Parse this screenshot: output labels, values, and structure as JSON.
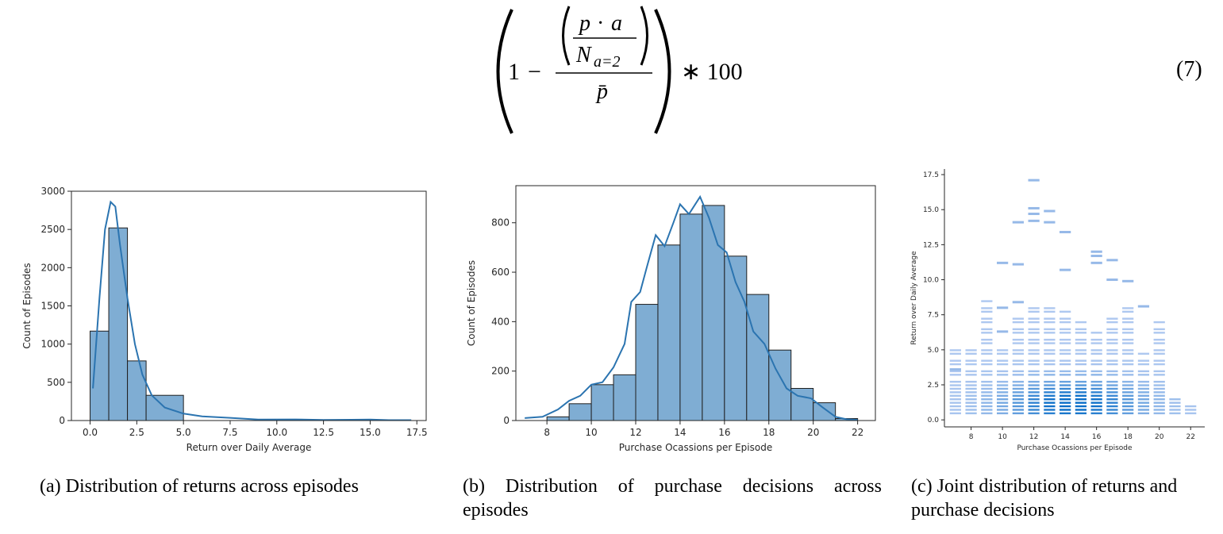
{
  "equation": {
    "number": "(7)",
    "one": "1",
    "minus": "−",
    "p_vec": "p⃗",
    "dot": "·",
    "a_vec": "a⃗",
    "n_label": "N",
    "n_sub": "a=2",
    "p_bar": "p̄",
    "times": "∗ 100"
  },
  "captions": {
    "a": "(a) Distribution of returns across episodes",
    "b_line1": "(b) Distribution of purchase decisions across",
    "b_line2": "episodes",
    "c_line1": "(c) Joint distribution of returns and",
    "c_line2": "purchase decisions"
  },
  "chart_data": [
    {
      "type": "bar",
      "xlabel": "Return over Daily Average",
      "ylabel": "Count of Episodes",
      "xlim": [
        -1,
        18
      ],
      "ylim": [
        0,
        3000
      ],
      "xticks": [
        0.0,
        2.5,
        5.0,
        7.5,
        10.0,
        12.5,
        15.0,
        17.5
      ],
      "xtick_labels": [
        "0.0",
        "2.5",
        "5.0",
        "7.5",
        "10.0",
        "12.5",
        "15.0",
        "17.5"
      ],
      "yticks": [
        0,
        500,
        1000,
        1500,
        2000,
        2500,
        3000
      ],
      "bins": [
        {
          "x0": 0.0,
          "x1": 1.0,
          "value": 1170
        },
        {
          "x0": 1.0,
          "x1": 2.0,
          "value": 2520
        },
        {
          "x0": 2.0,
          "x1": 3.0,
          "value": 780
        },
        {
          "x0": 3.0,
          "x1": 5.0,
          "value": 330
        }
      ],
      "kde": [
        [
          0.15,
          420
        ],
        [
          0.5,
          1600
        ],
        [
          0.8,
          2500
        ],
        [
          1.1,
          2860
        ],
        [
          1.35,
          2800
        ],
        [
          1.6,
          2300
        ],
        [
          2.0,
          1600
        ],
        [
          2.4,
          1000
        ],
        [
          2.8,
          600
        ],
        [
          3.3,
          330
        ],
        [
          4.0,
          170
        ],
        [
          5.0,
          90
        ],
        [
          6.0,
          55
        ],
        [
          7.5,
          35
        ],
        [
          9.0,
          12
        ],
        [
          11.0,
          15
        ],
        [
          12.5,
          8
        ],
        [
          14.0,
          10
        ],
        [
          15.0,
          14
        ],
        [
          16.0,
          5
        ],
        [
          17.2,
          5
        ]
      ]
    },
    {
      "type": "bar",
      "xlabel": "Purchase Ocassions per Episode",
      "ylabel": "Count of Episodes",
      "xlim": [
        6.6,
        22.8
      ],
      "ylim": [
        0,
        950
      ],
      "xticks": [
        8,
        10,
        12,
        14,
        16,
        18,
        20,
        22
      ],
      "xtick_labels": [
        "8",
        "10",
        "12",
        "14",
        "16",
        "18",
        "20",
        "22"
      ],
      "yticks": [
        0,
        200,
        400,
        600,
        800
      ],
      "bins": [
        {
          "x0": 8,
          "x1": 9,
          "value": 15
        },
        {
          "x0": 9,
          "x1": 10,
          "value": 68
        },
        {
          "x0": 10,
          "x1": 11,
          "value": 145
        },
        {
          "x0": 11,
          "x1": 12,
          "value": 185
        },
        {
          "x0": 12,
          "x1": 13,
          "value": 470
        },
        {
          "x0": 13,
          "x1": 14,
          "value": 710
        },
        {
          "x0": 14,
          "x1": 15,
          "value": 835
        },
        {
          "x0": 15,
          "x1": 16,
          "value": 870
        },
        {
          "x0": 16,
          "x1": 17,
          "value": 665
        },
        {
          "x0": 17,
          "x1": 18,
          "value": 510
        },
        {
          "x0": 18,
          "x1": 19,
          "value": 285
        },
        {
          "x0": 19,
          "x1": 20,
          "value": 130
        },
        {
          "x0": 20,
          "x1": 21,
          "value": 72
        },
        {
          "x0": 21,
          "x1": 22,
          "value": 8
        }
      ],
      "kde": [
        [
          7.0,
          10
        ],
        [
          7.8,
          15
        ],
        [
          8.5,
          45
        ],
        [
          9.0,
          80
        ],
        [
          9.5,
          100
        ],
        [
          10.0,
          145
        ],
        [
          10.5,
          155
        ],
        [
          11.0,
          215
        ],
        [
          11.5,
          310
        ],
        [
          11.8,
          480
        ],
        [
          12.2,
          520
        ],
        [
          12.5,
          620
        ],
        [
          12.9,
          750
        ],
        [
          13.3,
          705
        ],
        [
          13.7,
          800
        ],
        [
          14.0,
          875
        ],
        [
          14.4,
          835
        ],
        [
          14.9,
          905
        ],
        [
          15.3,
          820
        ],
        [
          15.7,
          710
        ],
        [
          16.1,
          680
        ],
        [
          16.5,
          560
        ],
        [
          16.9,
          480
        ],
        [
          17.3,
          360
        ],
        [
          17.8,
          310
        ],
        [
          18.3,
          210
        ],
        [
          18.8,
          130
        ],
        [
          19.3,
          100
        ],
        [
          19.9,
          90
        ],
        [
          20.4,
          55
        ],
        [
          21.0,
          15
        ],
        [
          21.5,
          5
        ],
        [
          22.0,
          3
        ]
      ]
    },
    {
      "type": "heatmap",
      "xlabel": "Purchase Ocassions per Episode",
      "ylabel": "Return over Daily Average",
      "xlim": [
        6.3,
        22.9
      ],
      "ylim": [
        -0.5,
        17.9
      ],
      "xticks": [
        8,
        10,
        12,
        14,
        16,
        18,
        20,
        22
      ],
      "xtick_labels": [
        "8",
        "10",
        "12",
        "14",
        "16",
        "18",
        "20",
        "22"
      ],
      "yticks": [
        0.0,
        2.5,
        5.0,
        7.5,
        10.0,
        12.5,
        15.0,
        17.5
      ],
      "ytick_labels": [
        "0.0",
        "2.5",
        "5.0",
        "7.5",
        "10.0",
        "12.5",
        "15.0",
        "17.5"
      ],
      "columns": [
        {
          "x": 7,
          "ymax": 5.2,
          "sparse": [
            3.6
          ]
        },
        {
          "x": 8,
          "ymax": 4.9,
          "sparse": []
        },
        {
          "x": 9,
          "ymax": 8.4,
          "sparse": []
        },
        {
          "x": 10,
          "ymax": 5.2,
          "sparse": [
            6.3,
            8.0,
            11.2
          ]
        },
        {
          "x": 11,
          "ymax": 7.5,
          "sparse": [
            8.4,
            11.1,
            14.1
          ]
        },
        {
          "x": 12,
          "ymax": 8.0,
          "sparse": [
            14.2,
            14.7,
            15.1,
            17.1
          ]
        },
        {
          "x": 13,
          "ymax": 8.3,
          "sparse": [
            14.1,
            14.9
          ]
        },
        {
          "x": 14,
          "ymax": 7.7,
          "sparse": [
            10.7,
            13.4
          ]
        },
        {
          "x": 15,
          "ymax": 7.0,
          "sparse": []
        },
        {
          "x": 16,
          "ymax": 6.2,
          "sparse": [
            11.2,
            11.7,
            12.0
          ]
        },
        {
          "x": 17,
          "ymax": 7.2,
          "sparse": [
            10.0,
            11.4
          ]
        },
        {
          "x": 18,
          "ymax": 8.0,
          "sparse": [
            9.9
          ]
        },
        {
          "x": 19,
          "ymax": 4.7,
          "sparse": [
            8.1
          ]
        },
        {
          "x": 20,
          "ymax": 7.0,
          "sparse": []
        },
        {
          "x": 21,
          "ymax": 1.5,
          "sparse": []
        },
        {
          "x": 22,
          "ymax": 0.9,
          "sparse": []
        }
      ]
    }
  ]
}
